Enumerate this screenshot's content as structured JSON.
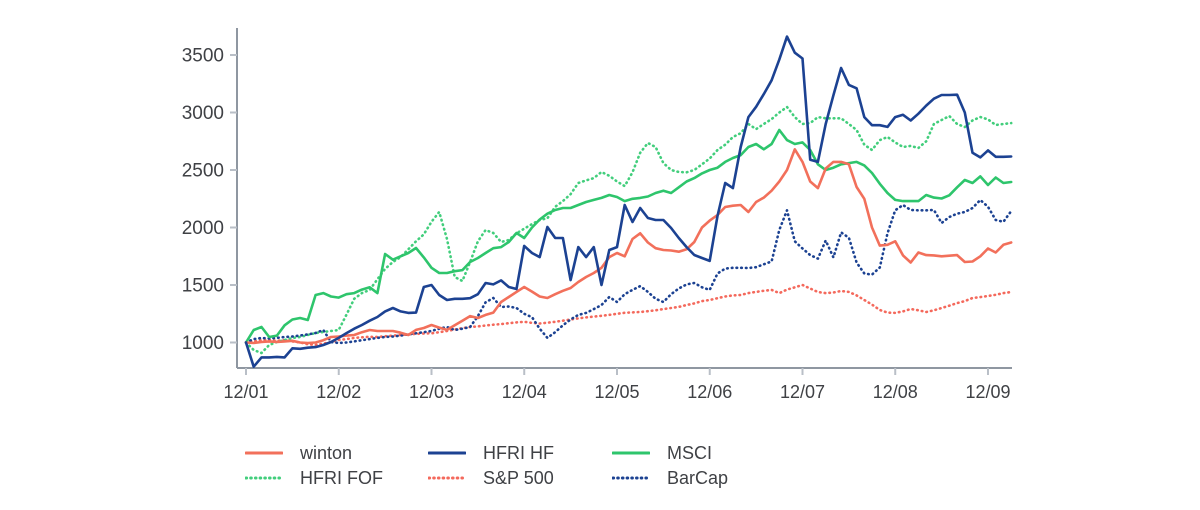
{
  "chart_data": {
    "type": "line",
    "title": "",
    "xlabel": "",
    "ylabel": "",
    "x_axis": {
      "tick_labels": [
        "12/01",
        "12/02",
        "12/03",
        "12/04",
        "12/05",
        "12/06",
        "12/07",
        "12/08",
        "12/09"
      ],
      "tick_months": [
        0,
        12,
        24,
        36,
        48,
        60,
        72,
        84,
        96
      ],
      "note": "monthly points, month 0 = 12/01, 100 points through month 99"
    },
    "y_axis": {
      "ticks": [
        1000,
        1500,
        2000,
        2500,
        3000,
        3500
      ],
      "range_drawn": [
        778,
        3735
      ],
      "grid": "off"
    },
    "legend_position": "bottom",
    "legend_order": [
      "winton",
      "HFRI HF",
      "MSCI",
      "HFRI FOF",
      "S&P 500",
      "BarCap"
    ],
    "draw_order": [
      "S&P 500",
      "HFRI FOF",
      "BarCap",
      "MSCI",
      "winton",
      "HFRI HF"
    ],
    "colors": {
      "salmon": "#F2705B",
      "navy": "#1C4292",
      "green": "#2EC56C",
      "green_dotted": "#42CE7C",
      "red_dotted": "#F4695C",
      "axis": "#8F97A1",
      "tick": "#B9BFC7",
      "text": "#3F4145"
    },
    "series": [
      {
        "name": "winton",
        "color": "#F2705B",
        "style": "solid",
        "values": [
          1000,
          996,
          1004,
          1010,
          1005,
          1010,
          1015,
          1000,
          996,
          1000,
          1020,
          1048,
          1052,
          1060,
          1065,
          1090,
          1109,
          1100,
          1100,
          1100,
          1085,
          1065,
          1110,
          1126,
          1152,
          1130,
          1110,
          1150,
          1190,
          1230,
          1213,
          1240,
          1260,
          1352,
          1396,
          1440,
          1483,
          1443,
          1400,
          1387,
          1420,
          1450,
          1474,
          1526,
          1570,
          1604,
          1650,
          1743,
          1778,
          1750,
          1900,
          1950,
          1870,
          1820,
          1804,
          1800,
          1790,
          1810,
          1874,
          2000,
          2060,
          2109,
          2178,
          2190,
          2196,
          2135,
          2222,
          2260,
          2320,
          2400,
          2500,
          2680,
          2570,
          2400,
          2343,
          2513,
          2570,
          2570,
          2550,
          2352,
          2250,
          2000,
          1843,
          1850,
          1880,
          1757,
          1696,
          1783,
          1760,
          1757,
          1750,
          1755,
          1760,
          1700,
          1704,
          1750,
          1817,
          1783,
          1850,
          1870
        ]
      },
      {
        "name": "HFRI FOF",
        "color": "#42CE7C",
        "style": "dotted",
        "values": [
          1000,
          935,
          909,
          978,
          1004,
          1022,
          1039,
          1048,
          1065,
          1083,
          1091,
          1100,
          1109,
          1243,
          1380,
          1430,
          1457,
          1550,
          1640,
          1700,
          1743,
          1810,
          1880,
          1940,
          2050,
          2135,
          1900,
          1570,
          1535,
          1700,
          1880,
          1978,
          1952,
          1874,
          1891,
          1950,
          1990,
          2030,
          2065,
          2080,
          2180,
          2230,
          2290,
          2387,
          2410,
          2430,
          2483,
          2450,
          2400,
          2360,
          2480,
          2650,
          2735,
          2700,
          2560,
          2500,
          2483,
          2480,
          2500,
          2550,
          2600,
          2674,
          2720,
          2787,
          2820,
          2900,
          2856,
          2900,
          2943,
          3000,
          3048,
          2960,
          2900,
          2908,
          2960,
          2950,
          2950,
          2950,
          2900,
          2848,
          2720,
          2674,
          2760,
          2787,
          2740,
          2700,
          2710,
          2691,
          2750,
          2900,
          2935,
          2970,
          2900,
          2874,
          2930,
          2961,
          2940,
          2891,
          2900,
          2908
        ]
      },
      {
        "name": "HFRI HF",
        "color": "#1C4292",
        "style": "solid",
        "values": [
          1000,
          790,
          870,
          870,
          875,
          870,
          950,
          945,
          955,
          960,
          978,
          1004,
          1040,
          1082,
          1120,
          1152,
          1190,
          1222,
          1270,
          1300,
          1270,
          1257,
          1260,
          1483,
          1500,
          1413,
          1370,
          1380,
          1380,
          1385,
          1420,
          1517,
          1505,
          1540,
          1483,
          1465,
          1840,
          1778,
          1743,
          2004,
          1909,
          1909,
          1543,
          1830,
          1743,
          1830,
          1500,
          1804,
          1830,
          2196,
          2048,
          2170,
          2083,
          2065,
          2065,
          1996,
          1909,
          1830,
          1761,
          1735,
          1710,
          2100,
          2387,
          2343,
          2700,
          2960,
          3050,
          3160,
          3280,
          3460,
          3660,
          3520,
          3470,
          2590,
          2570,
          2900,
          3150,
          3387,
          3240,
          3210,
          2960,
          2890,
          2890,
          2875,
          2960,
          2980,
          2930,
          2990,
          3060,
          3120,
          3152,
          3152,
          3155,
          3000,
          2650,
          2610,
          2670,
          2615,
          2615,
          2617
        ]
      },
      {
        "name": "S&P 500",
        "color": "#F4695C",
        "style": "dotted",
        "values": [
          1000,
          1010,
          1020,
          1022,
          1015,
          1020,
          1010,
          1000,
          985,
          978,
          990,
          1005,
          1022,
          1030,
          1040,
          1045,
          1050,
          1048,
          1055,
          1060,
          1065,
          1070,
          1075,
          1078,
          1080,
          1090,
          1100,
          1112,
          1125,
          1135,
          1140,
          1148,
          1155,
          1160,
          1168,
          1175,
          1180,
          1170,
          1165,
          1172,
          1180,
          1190,
          1200,
          1210,
          1218,
          1225,
          1232,
          1240,
          1250,
          1258,
          1262,
          1265,
          1272,
          1280,
          1290,
          1300,
          1310,
          1326,
          1340,
          1360,
          1370,
          1385,
          1400,
          1410,
          1413,
          1430,
          1440,
          1450,
          1457,
          1430,
          1460,
          1480,
          1500,
          1470,
          1439,
          1430,
          1435,
          1448,
          1440,
          1410,
          1370,
          1330,
          1283,
          1260,
          1257,
          1270,
          1291,
          1280,
          1265,
          1280,
          1300,
          1320,
          1343,
          1360,
          1387,
          1395,
          1404,
          1415,
          1430,
          1439
        ]
      },
      {
        "name": "MSCI",
        "color": "#2EC56C",
        "style": "solid",
        "values": [
          1000,
          1109,
          1135,
          1048,
          1060,
          1150,
          1200,
          1213,
          1196,
          1413,
          1430,
          1400,
          1390,
          1420,
          1430,
          1460,
          1480,
          1430,
          1770,
          1720,
          1750,
          1778,
          1822,
          1740,
          1650,
          1604,
          1604,
          1620,
          1630,
          1700,
          1735,
          1778,
          1820,
          1830,
          1874,
          1952,
          1909,
          2000,
          2070,
          2120,
          2152,
          2170,
          2170,
          2196,
          2222,
          2240,
          2257,
          2283,
          2265,
          2230,
          2250,
          2257,
          2270,
          2300,
          2320,
          2300,
          2350,
          2400,
          2430,
          2470,
          2500,
          2520,
          2570,
          2604,
          2630,
          2700,
          2726,
          2680,
          2726,
          2848,
          2760,
          2726,
          2740,
          2674,
          2550,
          2500,
          2520,
          2550,
          2560,
          2570,
          2540,
          2474,
          2380,
          2300,
          2240,
          2230,
          2230,
          2230,
          2283,
          2260,
          2252,
          2280,
          2350,
          2413,
          2387,
          2444,
          2370,
          2435,
          2387,
          2396
        ]
      },
      {
        "name": "BarCap",
        "color": "#1C4292",
        "style": "dotted",
        "values": [
          1000,
          1030,
          1039,
          1035,
          1040,
          1048,
          1052,
          1061,
          1070,
          1083,
          1109,
          1004,
          996,
          1000,
          1010,
          1020,
          1030,
          1040,
          1048,
          1052,
          1060,
          1070,
          1080,
          1090,
          1100,
          1120,
          1135,
          1109,
          1120,
          1135,
          1230,
          1350,
          1387,
          1309,
          1313,
          1300,
          1250,
          1220,
          1120,
          1040,
          1090,
          1150,
          1200,
          1240,
          1257,
          1290,
          1326,
          1396,
          1352,
          1420,
          1457,
          1490,
          1440,
          1380,
          1352,
          1420,
          1470,
          1505,
          1517,
          1480,
          1457,
          1600,
          1643,
          1650,
          1650,
          1648,
          1655,
          1680,
          1704,
          1978,
          2150,
          1880,
          1817,
          1760,
          1730,
          1887,
          1740,
          1957,
          1910,
          1696,
          1600,
          1590,
          1652,
          1950,
          2150,
          2196,
          2152,
          2150,
          2150,
          2152,
          2039,
          2091,
          2120,
          2135,
          2170,
          2239,
          2180,
          2065,
          2050,
          2143
        ]
      }
    ]
  }
}
